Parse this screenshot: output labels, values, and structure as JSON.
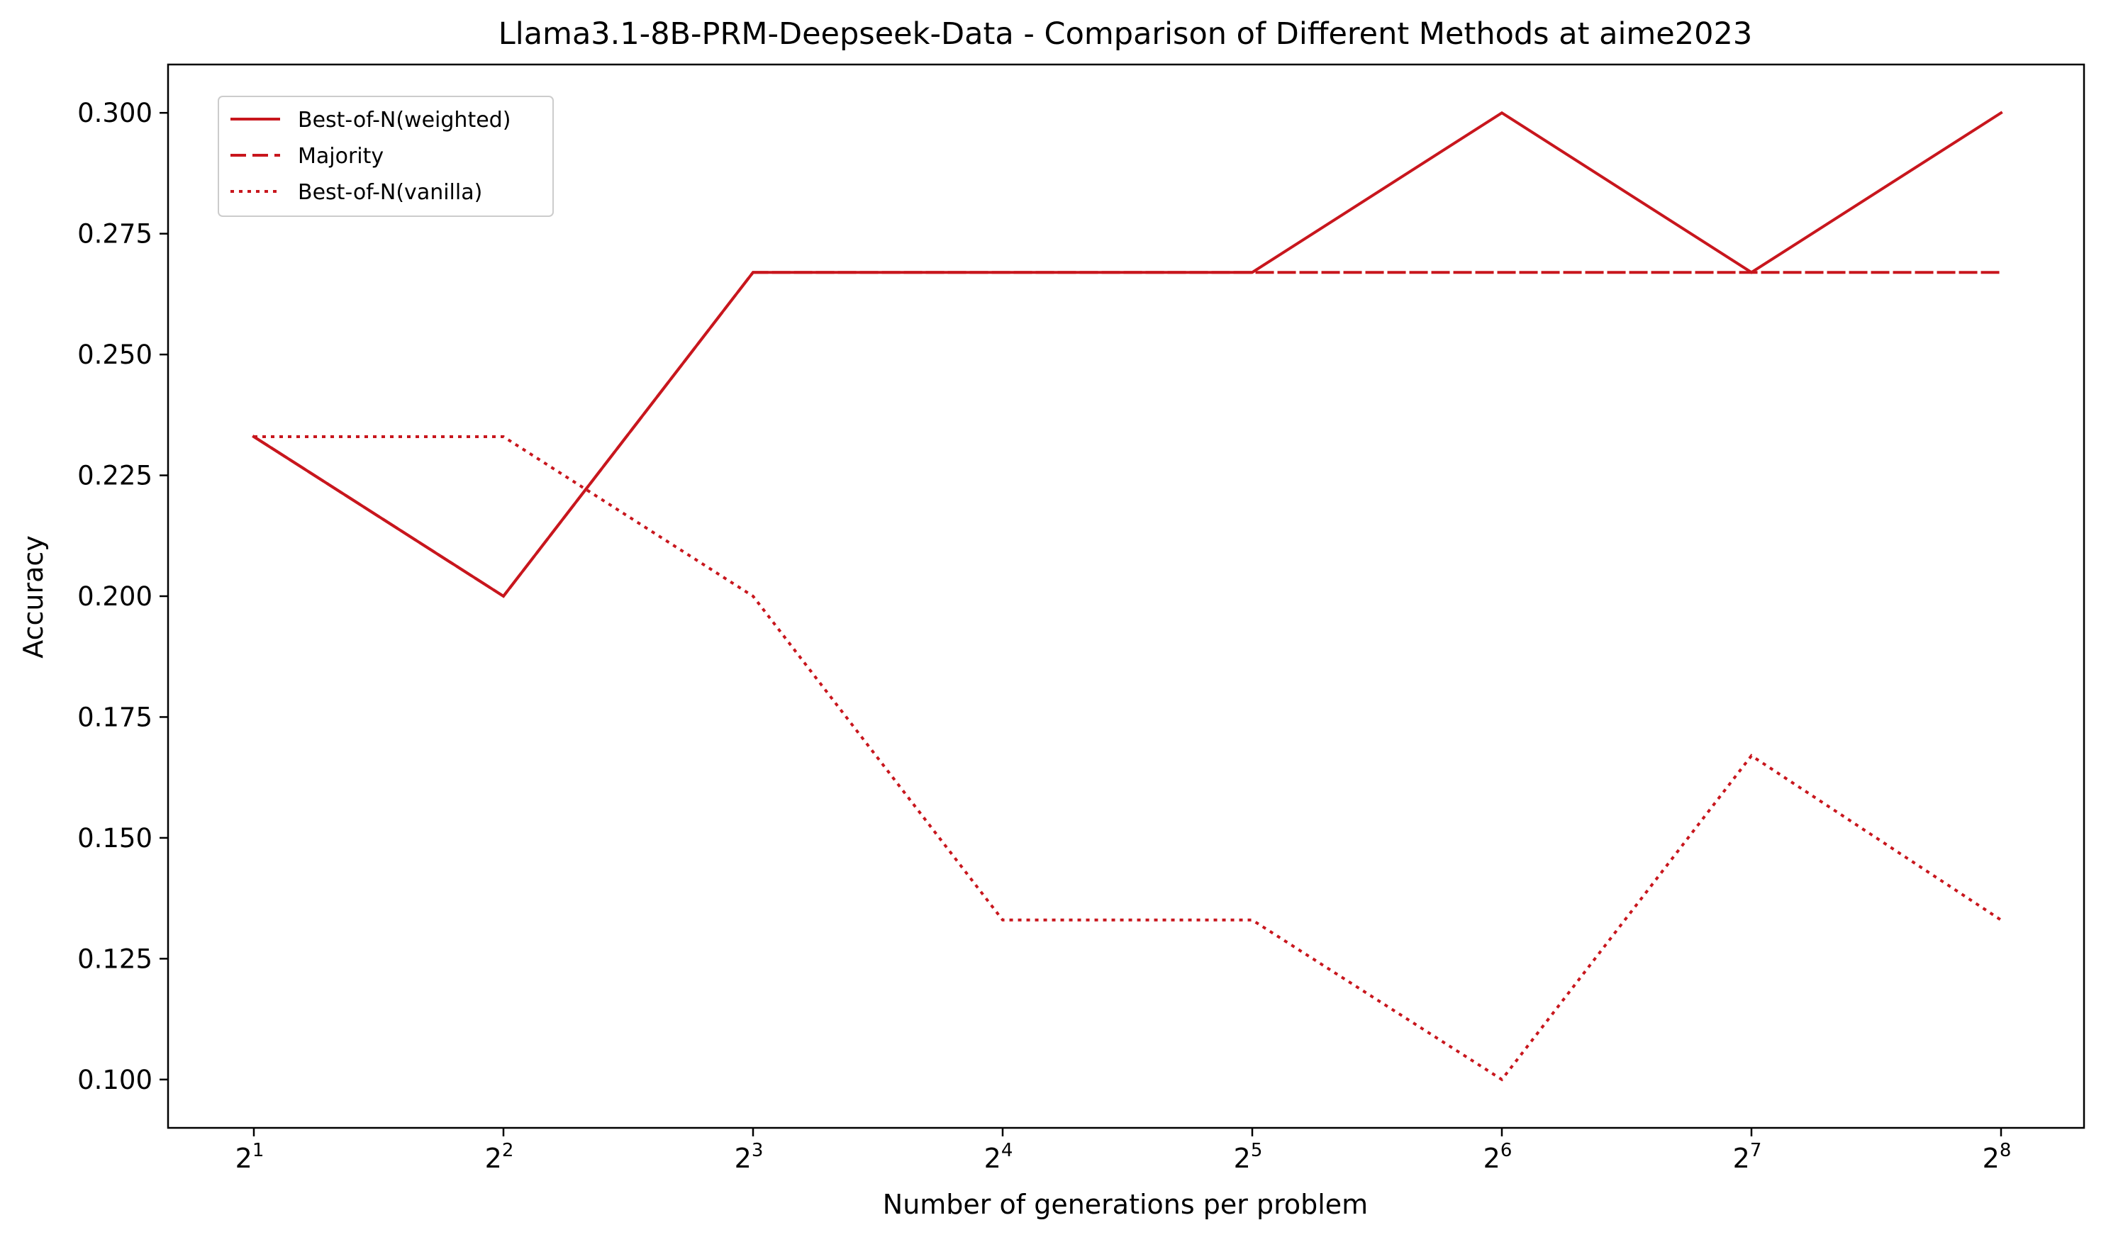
{
  "chart_data": {
    "type": "line",
    "title": "Llama3.1-8B-PRM-Deepseek-Data - Comparison of Different Methods at aime2023",
    "xlabel": "Number of generations per problem",
    "ylabel": "Accuracy",
    "x_scale": "log2",
    "x": [
      2,
      4,
      8,
      16,
      32,
      64,
      128,
      256
    ],
    "x_tick_labels": [
      {
        "base": "2",
        "exp": "1"
      },
      {
        "base": "2",
        "exp": "2"
      },
      {
        "base": "2",
        "exp": "3"
      },
      {
        "base": "2",
        "exp": "4"
      },
      {
        "base": "2",
        "exp": "5"
      },
      {
        "base": "2",
        "exp": "6"
      },
      {
        "base": "2",
        "exp": "7"
      },
      {
        "base": "2",
        "exp": "8"
      }
    ],
    "y_ticks": [
      "0.100",
      "0.125",
      "0.150",
      "0.175",
      "0.200",
      "0.225",
      "0.250",
      "0.275",
      "0.300"
    ],
    "ylim": [
      0.09,
      0.31
    ],
    "grid": false,
    "legend_position": "top-left",
    "series": [
      {
        "name": "Best-of-N(weighted)",
        "style": "solid",
        "color": "#c8161d",
        "values": [
          0.233,
          0.2,
          0.267,
          0.267,
          0.267,
          0.3,
          0.267,
          0.3
        ]
      },
      {
        "name": "Majority",
        "style": "dashed",
        "color": "#c8161d",
        "values": [
          0.233,
          0.2,
          0.267,
          0.267,
          0.267,
          0.267,
          0.267,
          0.267
        ]
      },
      {
        "name": "Best-of-N(vanilla)",
        "style": "dotted",
        "color": "#c8161d",
        "values": [
          0.233,
          0.233,
          0.2,
          0.133,
          0.133,
          0.1,
          0.167,
          0.133
        ]
      }
    ]
  }
}
